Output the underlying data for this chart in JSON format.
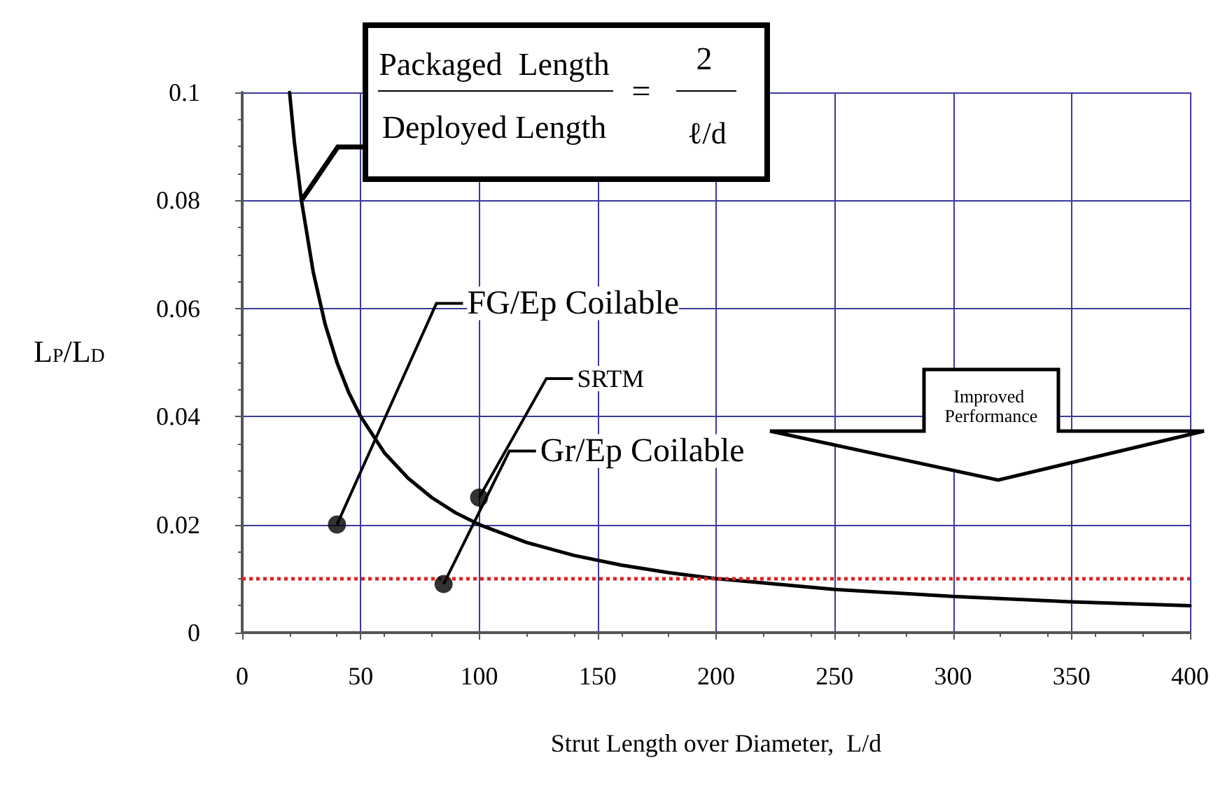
{
  "chart_data": {
    "type": "line",
    "xlabel": "Strut Length over Diameter,  L/d",
    "ylabel": "L$_{P}$/L$_{D}$",
    "xlim": [
      0,
      400
    ],
    "xticks": [
      0,
      50,
      100,
      150,
      200,
      250,
      300,
      350,
      400
    ],
    "ylim": [
      0,
      0.1
    ],
    "yticks": [
      0,
      0.02,
      0.04,
      0.06,
      0.08,
      0.1
    ],
    "grid": true,
    "series": [
      {
        "type": "line",
        "color": "#000000",
        "marker": "none",
        "line_style": "solid",
        "x": [
          20,
          22,
          25,
          30,
          35,
          40,
          45,
          50,
          60,
          70,
          80,
          90,
          100,
          120,
          140,
          160,
          180,
          200,
          250,
          300,
          350,
          400
        ],
        "values": [
          0.1,
          0.0909,
          0.08,
          0.0667,
          0.0571,
          0.05,
          0.0444,
          0.04,
          0.0333,
          0.0286,
          0.025,
          0.0222,
          0.02,
          0.0167,
          0.0143,
          0.0125,
          0.0111,
          0.01,
          0.008,
          0.0067,
          0.0057,
          0.005
        ]
      },
      {
        "type": "scatter",
        "color": "#000000",
        "marker": "circle",
        "x": [
          40,
          85,
          100
        ],
        "values": [
          0.02,
          0.009,
          0.025
        ]
      }
    ],
    "ref_lines": [
      {
        "axis": "y",
        "value": 0.01,
        "color": "#e02020",
        "line_style": "dotted"
      }
    ],
    "annotations": [
      "Packaged  Length",
      {
        "text": "Deployed Length",
        "x": 25,
        "y": 0.08
      },
      "=",
      "2",
      "ℓ/d",
      {
        "text": "FG/Ep Coilable",
        "x": 40,
        "y": 0.02
      },
      {
        "text": "Gr/Ep Coilable",
        "x": 85,
        "y": 0.009
      },
      {
        "text": "SRTM",
        "x": 100,
        "y": 0.025
      },
      "Improved Performance"
    ]
  }
}
